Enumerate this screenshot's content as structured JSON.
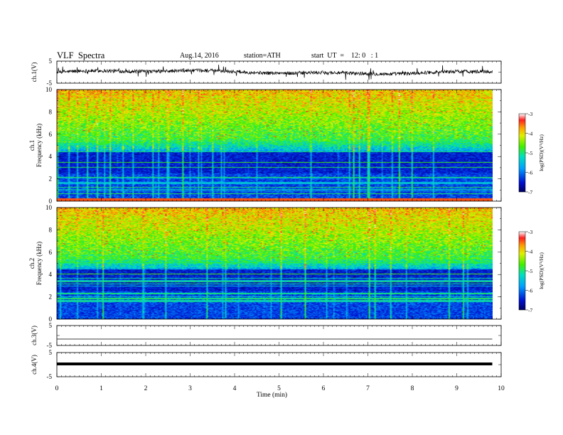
{
  "header": {
    "title": "VLF  Spectra",
    "date": "Aug.14, 2016",
    "station": "station=ATH",
    "start": "start  UT  =    12: 0   : 1"
  },
  "chart_data": [
    {
      "type": "line",
      "name": "ch1-waveform",
      "ylabel": "ch.1(V)",
      "ylim": [
        -5,
        5
      ],
      "yticks": [
        "5",
        "-5"
      ],
      "xlim": [
        0,
        10
      ],
      "x_extent": 9.8
    },
    {
      "type": "heatmap",
      "name": "ch1-spectrogram",
      "ylabel": "ch.1\nFrequency (kHz)",
      "ylabel_line1": "ch.1",
      "ylabel_line2": "Frequency  (kHz)",
      "ylim": [
        0,
        10
      ],
      "yticks": [
        "0",
        "2",
        "4",
        "6",
        "8",
        "10"
      ],
      "xlim": [
        0,
        10
      ],
      "x_extent": 9.8,
      "colorbar": {
        "label": "log(PSD)(V²/Hz)",
        "range": [
          -7,
          -3
        ],
        "ticks": [
          "-3",
          "-4",
          "-5",
          "-6",
          "-7"
        ]
      }
    },
    {
      "type": "heatmap",
      "name": "ch2-spectrogram",
      "ylabel": "ch.2\nFrequency (kHz)",
      "ylabel_line1": "ch.2",
      "ylabel_line2": "Frequency  (kHz)",
      "ylim": [
        0,
        10
      ],
      "yticks": [
        "0",
        "2",
        "4",
        "6",
        "8",
        "10"
      ],
      "xlim": [
        0,
        10
      ],
      "x_extent": 9.8,
      "colorbar": {
        "label": "log(PSD)(V²/Hz)",
        "range": [
          -7,
          -3
        ],
        "ticks": [
          "-3",
          "-4",
          "-5",
          "-6",
          "-7"
        ]
      }
    },
    {
      "type": "line",
      "name": "ch3-waveform",
      "ylabel": "ch.3(V)",
      "ylim": [
        -5,
        5
      ],
      "yticks": [
        "5",
        "-5"
      ],
      "level": 0
    },
    {
      "type": "line",
      "name": "ch4-waveform",
      "ylabel": "ch.4(V)",
      "ylim": [
        -5,
        5
      ],
      "yticks": [
        "5",
        "-5"
      ],
      "level": 0
    }
  ],
  "xaxis": {
    "label": "Time  (min)",
    "ticks": [
      "0",
      "1",
      "2",
      "3",
      "4",
      "5",
      "6",
      "7",
      "8",
      "9",
      "10"
    ]
  }
}
